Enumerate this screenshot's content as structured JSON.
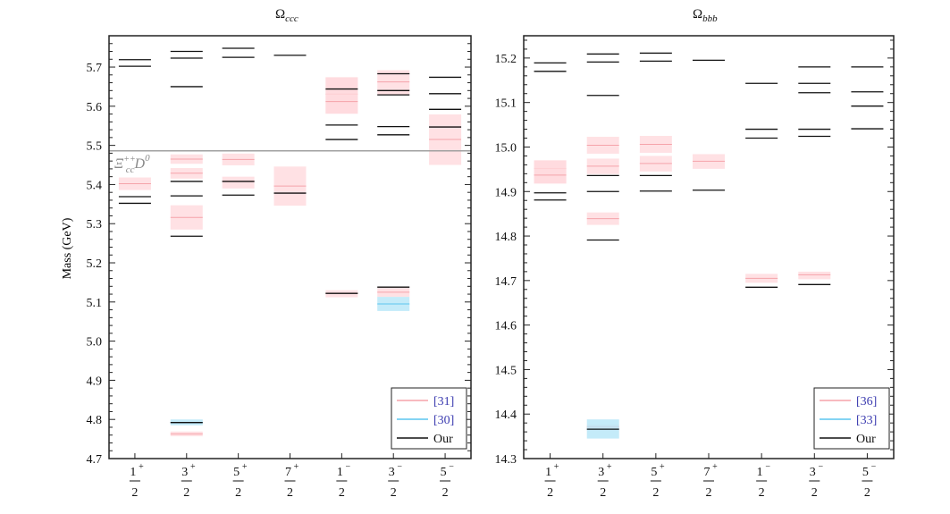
{
  "colors": {
    "pink_band": "#ffd9dd",
    "pink_line": "#f5a3aa",
    "blue_band": "#b5e6f8",
    "blue_line": "#5cc6ef",
    "our": "#111111",
    "threshold": "#a0a0a0",
    "ref_text": "#3b3bb0"
  },
  "chart_data": [
    {
      "type": "level-diagram",
      "title": {
        "symbol": "Ω",
        "sub": "ccc"
      },
      "ylabel": "Mass (GeV)",
      "ylim": [
        4.7,
        5.78
      ],
      "yticks": [
        4.7,
        4.8,
        4.9,
        5.0,
        5.1,
        5.2,
        5.3,
        5.4,
        5.5,
        5.6,
        5.7
      ],
      "categories": [
        {
          "num": "1",
          "parity": "+",
          "den": "2"
        },
        {
          "num": "3",
          "parity": "+",
          "den": "2"
        },
        {
          "num": "5",
          "parity": "+",
          "den": "2"
        },
        {
          "num": "7",
          "parity": "+",
          "den": "2"
        },
        {
          "num": "1",
          "parity": "−",
          "den": "2"
        },
        {
          "num": "3",
          "parity": "−",
          "den": "2"
        },
        {
          "num": "5",
          "parity": "−",
          "den": "2"
        }
      ],
      "threshold": {
        "value": 5.486,
        "label_main": "Ξ",
        "label_sub": "cc",
        "label_sup": "++",
        "label_tail": "D",
        "label_tail_sup": "0"
      },
      "legend": {
        "placement": "bottom-right",
        "entries": [
          {
            "name": "[31]",
            "style": "pink"
          },
          {
            "name": "[30]",
            "style": "blue"
          },
          {
            "name": "Our",
            "style": "our"
          }
        ]
      },
      "our": [
        [
          5.719,
          5.702,
          5.369,
          5.352
        ],
        [
          5.74,
          5.723,
          5.65,
          5.408,
          5.371,
          5.268,
          4.792
        ],
        [
          5.748,
          5.725,
          5.408,
          5.373
        ],
        [
          5.73,
          5.378
        ],
        [
          5.644,
          5.552,
          5.515,
          5.122
        ],
        [
          5.683,
          5.64,
          5.629,
          5.548,
          5.527,
          5.138
        ],
        [
          5.674,
          5.632,
          5.592,
          5.547
        ]
      ],
      "refs": [
        {
          "name": "[31]",
          "style": "pink",
          "levels": [
            {
              "cat": 0,
              "value": 5.402,
              "lo": 5.386,
              "hi": 5.418
            },
            {
              "cat": 1,
              "value": 5.465,
              "lo": 5.453,
              "hi": 5.477
            },
            {
              "cat": 1,
              "value": 5.429,
              "lo": 5.415,
              "hi": 5.442
            },
            {
              "cat": 1,
              "value": 5.316,
              "lo": 5.285,
              "hi": 5.347
            },
            {
              "cat": 1,
              "value": 4.763,
              "lo": 4.757,
              "hi": 4.769
            },
            {
              "cat": 2,
              "value": 5.464,
              "lo": 5.449,
              "hi": 5.479
            },
            {
              "cat": 2,
              "value": 5.408,
              "lo": 5.39,
              "hi": 5.42
            },
            {
              "cat": 3,
              "value": 5.396,
              "lo": 5.346,
              "hi": 5.446
            },
            {
              "cat": 4,
              "value": 5.631,
              "lo": 5.581,
              "hi": 5.674
            },
            {
              "cat": 4,
              "value": 5.612,
              "lo": 5.581,
              "hi": 5.674
            },
            {
              "cat": 4,
              "value": 5.122,
              "lo": 5.112,
              "hi": 5.13
            },
            {
              "cat": 5,
              "value": 5.662,
              "lo": 5.629,
              "hi": 5.692
            },
            {
              "cat": 5,
              "value": 5.125,
              "lo": 5.113,
              "hi": 5.138
            },
            {
              "cat": 6,
              "value": 5.515,
              "lo": 5.45,
              "hi": 5.579
            }
          ]
        },
        {
          "name": "[30]",
          "style": "blue",
          "levels": [
            {
              "cat": 1,
              "value": 4.792,
              "lo": 4.785,
              "hi": 4.8
            },
            {
              "cat": 5,
              "value": 5.095,
              "lo": 5.077,
              "hi": 5.113
            }
          ]
        }
      ]
    },
    {
      "type": "level-diagram",
      "title": {
        "symbol": "Ω",
        "sub": "bbb"
      },
      "ylabel": "",
      "ylim": [
        14.3,
        15.25
      ],
      "yticks": [
        14.3,
        14.4,
        14.5,
        14.6,
        14.7,
        14.8,
        14.9,
        15.0,
        15.1,
        15.2
      ],
      "categories": [
        {
          "num": "1",
          "parity": "+",
          "den": "2"
        },
        {
          "num": "3",
          "parity": "+",
          "den": "2"
        },
        {
          "num": "5",
          "parity": "+",
          "den": "2"
        },
        {
          "num": "7",
          "parity": "+",
          "den": "2"
        },
        {
          "num": "1",
          "parity": "−",
          "den": "2"
        },
        {
          "num": "3",
          "parity": "−",
          "den": "2"
        },
        {
          "num": "5",
          "parity": "−",
          "den": "2"
        }
      ],
      "legend": {
        "placement": "bottom-right",
        "entries": [
          {
            "name": "[36]",
            "style": "pink"
          },
          {
            "name": "[33]",
            "style": "blue"
          },
          {
            "name": "Our",
            "style": "our"
          }
        ]
      },
      "our": [
        [
          15.189,
          15.17,
          14.897,
          14.881
        ],
        [
          15.209,
          15.191,
          15.116,
          14.936,
          14.9,
          14.791,
          14.366
        ],
        [
          15.211,
          15.193,
          14.936,
          14.901
        ],
        [
          15.195,
          14.903
        ],
        [
          15.143,
          15.04,
          15.02,
          14.685
        ],
        [
          15.18,
          15.143,
          15.122,
          15.04,
          15.024,
          14.691
        ],
        [
          15.18,
          15.124,
          15.092,
          15.041
        ]
      ],
      "refs": [
        {
          "name": "[36]",
          "style": "pink",
          "levels": [
            {
              "cat": 0,
              "value": 14.952,
              "lo": 14.918,
              "hi": 14.97
            },
            {
              "cat": 0,
              "value": 14.937,
              "lo": 14.918,
              "hi": 14.97
            },
            {
              "cat": 1,
              "value": 15.004,
              "lo": 14.985,
              "hi": 15.023
            },
            {
              "cat": 1,
              "value": 14.957,
              "lo": 14.939,
              "hi": 14.974
            },
            {
              "cat": 1,
              "value": 14.839,
              "lo": 14.825,
              "hi": 14.853
            },
            {
              "cat": 1,
              "value": 14.371,
              "lo": 14.363,
              "hi": 14.376
            },
            {
              "cat": 2,
              "value": 15.006,
              "lo": 14.987,
              "hi": 15.025
            },
            {
              "cat": 2,
              "value": 14.963,
              "lo": 14.945,
              "hi": 14.98
            },
            {
              "cat": 3,
              "value": 14.968,
              "lo": 14.951,
              "hi": 14.984
            },
            {
              "cat": 4,
              "value": 14.705,
              "lo": 14.695,
              "hi": 14.715
            },
            {
              "cat": 5,
              "value": 14.713,
              "lo": 14.703,
              "hi": 14.72
            }
          ]
        },
        {
          "name": "[33]",
          "style": "blue",
          "levels": [
            {
              "cat": 1,
              "value": 14.366,
              "lo": 14.345,
              "hi": 14.388
            }
          ]
        }
      ]
    }
  ]
}
